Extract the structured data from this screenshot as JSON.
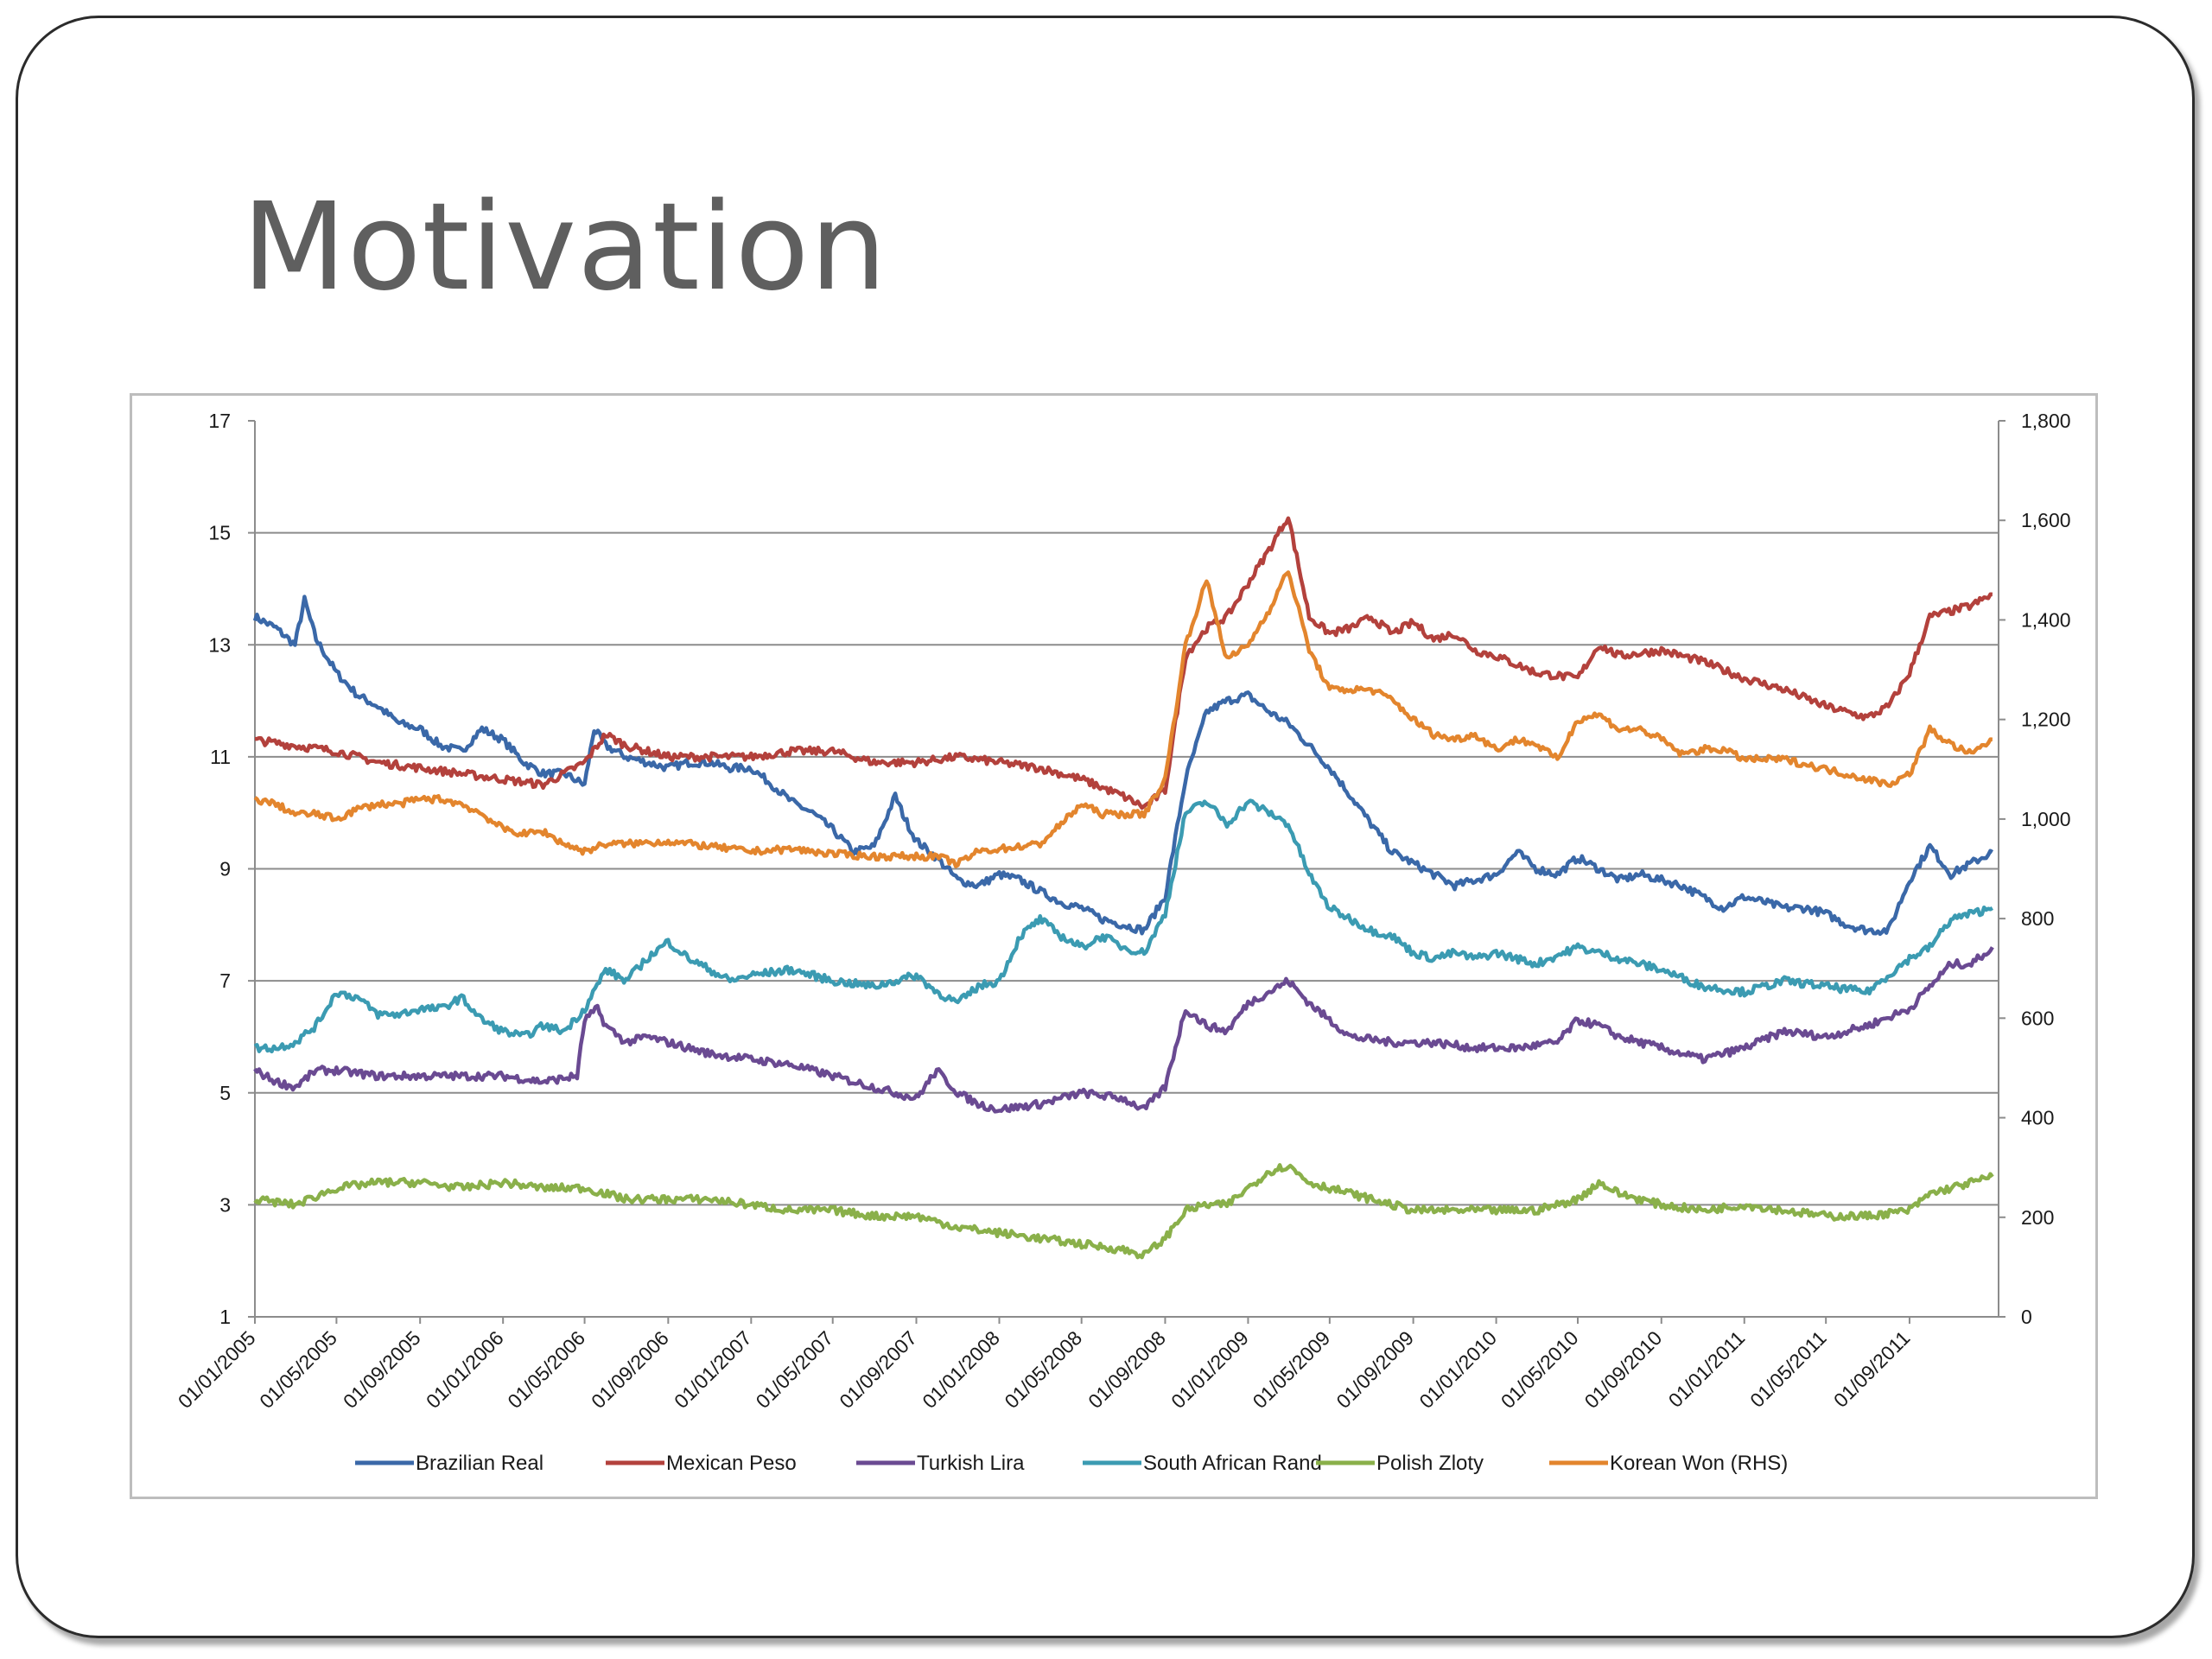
{
  "slide": {
    "title": "Motivation"
  },
  "chart_data": {
    "type": "line",
    "title": "",
    "xlabel": "",
    "ylabel": "",
    "y_left": {
      "ticks": [
        "17",
        "15",
        "13",
        "11",
        "9",
        "7",
        "5",
        "3",
        "1"
      ],
      "range": [
        1,
        17
      ]
    },
    "y_right": {
      "ticks": [
        "1,800",
        "1,600",
        "1,400",
        "1,200",
        "1,000",
        "800",
        "600",
        "400",
        "200",
        "0"
      ],
      "range": [
        0,
        1800
      ]
    },
    "x_ticks": [
      "01/01/2005",
      "01/05/2005",
      "01/09/2005",
      "01/01/2006",
      "01/05/2006",
      "01/09/2006",
      "01/01/2007",
      "01/05/2007",
      "01/09/2007",
      "01/01/2008",
      "01/05/2008",
      "01/09/2008",
      "01/01/2009",
      "01/05/2009",
      "01/09/2009",
      "01/01/2010",
      "01/05/2010",
      "01/09/2010",
      "01/01/2011",
      "01/05/2011",
      "01/09/2011"
    ],
    "x_range": [
      "2005-01-01",
      "2012-01-10"
    ],
    "grid": "horizontal",
    "legend_position": "bottom",
    "series": [
      {
        "name": "Brazilian Real",
        "color": "#3a68a8",
        "axis": "left",
        "x": [
          "2005-01-01",
          "2005-02-01",
          "2005-03-01",
          "2005-03-15",
          "2005-04-01",
          "2005-05-01",
          "2005-06-01",
          "2005-07-01",
          "2005-08-01",
          "2005-09-01",
          "2005-10-01",
          "2005-11-01",
          "2005-12-01",
          "2006-01-01",
          "2006-02-01",
          "2006-03-01",
          "2006-04-01",
          "2006-05-01",
          "2006-05-15",
          "2006-06-01",
          "2006-07-01",
          "2006-08-01",
          "2006-09-01",
          "2006-10-01",
          "2006-11-01",
          "2006-12-01",
          "2007-01-01",
          "2007-02-01",
          "2007-03-01",
          "2007-04-01",
          "2007-05-01",
          "2007-06-01",
          "2007-07-01",
          "2007-08-01",
          "2007-08-15",
          "2007-09-01",
          "2007-10-01",
          "2007-11-01",
          "2007-12-01",
          "2008-01-01",
          "2008-02-01",
          "2008-03-01",
          "2008-04-01",
          "2008-05-01",
          "2008-06-01",
          "2008-07-01",
          "2008-08-01",
          "2008-09-01",
          "2008-10-01",
          "2008-11-01",
          "2008-12-01",
          "2009-01-01",
          "2009-02-01",
          "2009-03-01",
          "2009-04-01",
          "2009-05-01",
          "2009-06-01",
          "2009-07-01",
          "2009-08-01",
          "2009-09-01",
          "2009-10-01",
          "2009-11-01",
          "2009-12-01",
          "2010-01-01",
          "2010-02-01",
          "2010-03-01",
          "2010-04-01",
          "2010-05-01",
          "2010-06-01",
          "2010-07-01",
          "2010-08-01",
          "2010-09-01",
          "2010-10-01",
          "2010-11-01",
          "2010-12-01",
          "2011-01-01",
          "2011-02-01",
          "2011-03-01",
          "2011-04-01",
          "2011-05-01",
          "2011-06-01",
          "2011-07-01",
          "2011-08-01",
          "2011-09-01",
          "2011-10-01",
          "2011-11-01",
          "2011-12-01",
          "2012-01-01"
        ],
        "y": [
          13.5,
          13.3,
          13.0,
          13.8,
          13.1,
          12.5,
          12.1,
          11.9,
          11.6,
          11.5,
          11.2,
          11.1,
          11.5,
          11.3,
          10.9,
          10.7,
          10.7,
          10.5,
          11.5,
          11.2,
          11.0,
          10.9,
          10.8,
          10.9,
          10.9,
          10.8,
          10.8,
          10.5,
          10.2,
          10.0,
          9.7,
          9.3,
          9.4,
          10.3,
          9.9,
          9.5,
          9.2,
          8.8,
          8.7,
          8.9,
          8.8,
          8.6,
          8.4,
          8.3,
          8.1,
          8.0,
          7.9,
          8.5,
          10.6,
          11.8,
          12.0,
          12.1,
          11.8,
          11.6,
          11.2,
          10.8,
          10.3,
          9.8,
          9.3,
          9.1,
          8.9,
          8.7,
          8.8,
          8.9,
          9.3,
          9.0,
          8.9,
          9.2,
          9.0,
          8.8,
          8.9,
          8.8,
          8.7,
          8.5,
          8.3,
          8.5,
          8.4,
          8.3,
          8.3,
          8.2,
          8.0,
          7.9,
          7.9,
          8.8,
          9.4,
          8.9,
          9.1,
          9.3
        ]
      },
      {
        "name": "Mexican Peso",
        "color": "#b3413c",
        "axis": "left",
        "x": [
          "2005-01-01",
          "2005-03-01",
          "2005-05-01",
          "2005-07-01",
          "2005-09-01",
          "2005-11-01",
          "2006-01-01",
          "2006-03-01",
          "2006-05-01",
          "2006-06-01",
          "2006-07-01",
          "2006-09-01",
          "2006-11-01",
          "2007-01-01",
          "2007-03-01",
          "2007-05-01",
          "2007-07-01",
          "2007-09-01",
          "2007-11-01",
          "2008-01-01",
          "2008-03-01",
          "2008-05-01",
          "2008-07-01",
          "2008-08-01",
          "2008-09-01",
          "2008-10-01",
          "2008-11-01",
          "2008-12-01",
          "2009-01-01",
          "2009-02-01",
          "2009-03-01",
          "2009-04-01",
          "2009-05-01",
          "2009-06-01",
          "2009-07-01",
          "2009-08-01",
          "2009-09-01",
          "2009-10-01",
          "2009-11-01",
          "2009-12-01",
          "2010-01-01",
          "2010-03-01",
          "2010-05-01",
          "2010-06-01",
          "2010-07-01",
          "2010-09-01",
          "2010-11-01",
          "2011-01-01",
          "2011-03-01",
          "2011-05-01",
          "2011-07-01",
          "2011-08-01",
          "2011-09-01",
          "2011-10-01",
          "2011-11-01",
          "2011-12-01",
          "2012-01-01"
        ],
        "y": [
          11.3,
          11.2,
          11.1,
          10.9,
          10.8,
          10.7,
          10.6,
          10.5,
          10.9,
          11.4,
          11.2,
          11.0,
          11.0,
          11.0,
          11.1,
          11.1,
          10.9,
          10.9,
          11.0,
          10.9,
          10.8,
          10.6,
          10.3,
          10.1,
          10.4,
          12.8,
          13.3,
          13.5,
          14.1,
          14.7,
          15.3,
          13.5,
          13.2,
          13.3,
          13.5,
          13.2,
          13.4,
          13.1,
          13.2,
          12.9,
          12.8,
          12.5,
          12.4,
          13.0,
          12.8,
          12.9,
          12.7,
          12.4,
          12.2,
          11.9,
          11.7,
          11.9,
          12.5,
          13.5,
          13.6,
          13.7,
          13.9
        ]
      },
      {
        "name": "Turkish Lira",
        "color": "#6a4a92",
        "axis": "left",
        "x": [
          "2005-01-01",
          "2005-02-01",
          "2005-03-01",
          "2005-04-01",
          "2005-05-01",
          "2005-07-01",
          "2005-09-01",
          "2005-11-01",
          "2006-01-01",
          "2006-03-01",
          "2006-04-20",
          "2006-05-01",
          "2006-05-20",
          "2006-06-01",
          "2006-07-01",
          "2006-08-01",
          "2006-09-01",
          "2006-11-01",
          "2007-01-01",
          "2007-03-01",
          "2007-05-01",
          "2007-07-01",
          "2007-09-01",
          "2007-10-01",
          "2007-11-01",
          "2007-12-01",
          "2008-01-01",
          "2008-03-01",
          "2008-05-01",
          "2008-07-01",
          "2008-08-01",
          "2008-09-01",
          "2008-10-01",
          "2008-11-01",
          "2008-12-01",
          "2009-01-01",
          "2009-02-01",
          "2009-03-01",
          "2009-04-01",
          "2009-05-01",
          "2009-06-01",
          "2009-08-01",
          "2009-10-01",
          "2009-12-01",
          "2010-02-01",
          "2010-04-01",
          "2010-05-01",
          "2010-06-01",
          "2010-07-01",
          "2010-09-01",
          "2010-11-01",
          "2011-01-01",
          "2011-03-01",
          "2011-05-01",
          "2011-07-01",
          "2011-09-01",
          "2011-10-01",
          "2011-11-01",
          "2011-12-01",
          "2012-01-01"
        ],
        "y": [
          5.4,
          5.2,
          5.1,
          5.4,
          5.4,
          5.3,
          5.3,
          5.3,
          5.3,
          5.2,
          5.3,
          6.3,
          6.5,
          6.2,
          5.9,
          6.0,
          5.9,
          5.7,
          5.6,
          5.5,
          5.3,
          5.1,
          4.9,
          5.4,
          5.0,
          4.8,
          4.7,
          4.8,
          5.0,
          4.9,
          4.7,
          5.1,
          6.5,
          6.2,
          6.1,
          6.6,
          6.8,
          7.0,
          6.6,
          6.3,
          6.0,
          5.9,
          5.9,
          5.8,
          5.8,
          5.9,
          6.3,
          6.2,
          6.0,
          5.8,
          5.6,
          5.8,
          6.1,
          6.0,
          6.2,
          6.5,
          6.9,
          7.3,
          7.3,
          7.6
        ]
      },
      {
        "name": "South African Rand",
        "color": "#3b9bb2",
        "axis": "left",
        "x": [
          "2005-01-01",
          "2005-02-01",
          "2005-03-01",
          "2005-04-01",
          "2005-05-01",
          "2005-06-01",
          "2005-07-01",
          "2005-08-01",
          "2005-09-01",
          "2005-10-01",
          "2005-11-01",
          "2005-12-01",
          "2006-01-01",
          "2006-02-01",
          "2006-03-01",
          "2006-04-01",
          "2006-05-01",
          "2006-06-01",
          "2006-07-01",
          "2006-08-01",
          "2006-09-01",
          "2006-10-01",
          "2006-11-01",
          "2006-12-01",
          "2007-01-01",
          "2007-03-01",
          "2007-05-01",
          "2007-07-01",
          "2007-09-01",
          "2007-10-01",
          "2007-11-01",
          "2007-12-01",
          "2008-01-01",
          "2008-02-01",
          "2008-03-01",
          "2008-04-01",
          "2008-05-01",
          "2008-06-01",
          "2008-07-01",
          "2008-08-01",
          "2008-09-01",
          "2008-10-01",
          "2008-11-01",
          "2008-12-01",
          "2009-01-01",
          "2009-02-01",
          "2009-03-01",
          "2009-04-01",
          "2009-05-01",
          "2009-06-01",
          "2009-07-01",
          "2009-08-01",
          "2009-09-01",
          "2009-10-01",
          "2009-11-01",
          "2009-12-01",
          "2010-01-01",
          "2010-03-01",
          "2010-05-01",
          "2010-06-01",
          "2010-07-01",
          "2010-09-01",
          "2010-11-01",
          "2011-01-01",
          "2011-03-01",
          "2011-05-01",
          "2011-07-01",
          "2011-09-01",
          "2011-10-01",
          "2011-11-01",
          "2011-12-01",
          "2012-01-01"
        ],
        "y": [
          5.8,
          5.8,
          5.9,
          6.2,
          6.8,
          6.7,
          6.4,
          6.4,
          6.5,
          6.5,
          6.7,
          6.3,
          6.1,
          6.0,
          6.2,
          6.1,
          6.5,
          7.2,
          7.0,
          7.4,
          7.7,
          7.4,
          7.2,
          7.0,
          7.1,
          7.2,
          7.0,
          6.9,
          7.1,
          6.8,
          6.6,
          6.9,
          7.0,
          7.8,
          8.1,
          7.8,
          7.6,
          7.8,
          7.6,
          7.5,
          8.2,
          10.0,
          10.2,
          9.8,
          10.2,
          10.0,
          9.8,
          8.9,
          8.3,
          8.1,
          7.9,
          7.8,
          7.5,
          7.4,
          7.5,
          7.4,
          7.5,
          7.3,
          7.6,
          7.5,
          7.4,
          7.2,
          6.9,
          6.8,
          7.0,
          6.9,
          6.8,
          7.4,
          7.6,
          8.1,
          8.2,
          8.3
        ]
      },
      {
        "name": "Polish Zloty",
        "color": "#8ab04a",
        "axis": "left",
        "x": [
          "2005-01-01",
          "2005-03-01",
          "2005-05-01",
          "2005-07-01",
          "2005-09-01",
          "2005-11-01",
          "2006-01-01",
          "2006-03-01",
          "2006-05-01",
          "2006-07-01",
          "2006-09-01",
          "2006-11-01",
          "2007-01-01",
          "2007-03-01",
          "2007-05-01",
          "2007-07-01",
          "2007-09-01",
          "2007-11-01",
          "2008-01-01",
          "2008-03-01",
          "2008-05-01",
          "2008-07-01",
          "2008-08-01",
          "2008-09-01",
          "2008-10-01",
          "2008-11-01",
          "2008-12-01",
          "2009-01-01",
          "2009-02-01",
          "2009-03-01",
          "2009-04-01",
          "2009-05-01",
          "2009-06-01",
          "2009-07-01",
          "2009-09-01",
          "2009-11-01",
          "2010-01-01",
          "2010-03-01",
          "2010-05-01",
          "2010-06-01",
          "2010-07-01",
          "2010-09-01",
          "2010-11-01",
          "2011-01-01",
          "2011-03-01",
          "2011-05-01",
          "2011-07-01",
          "2011-09-01",
          "2011-10-01",
          "2011-11-01",
          "2011-12-01",
          "2012-01-01"
        ],
        "y": [
          3.1,
          3.0,
          3.3,
          3.4,
          3.4,
          3.3,
          3.4,
          3.3,
          3.3,
          3.1,
          3.1,
          3.1,
          3.0,
          2.9,
          2.9,
          2.8,
          2.8,
          2.6,
          2.5,
          2.4,
          2.3,
          2.2,
          2.1,
          2.4,
          2.9,
          3.0,
          3.0,
          3.3,
          3.6,
          3.7,
          3.4,
          3.3,
          3.2,
          3.1,
          2.9,
          2.9,
          2.9,
          2.9,
          3.1,
          3.4,
          3.2,
          3.0,
          2.9,
          3.0,
          2.9,
          2.8,
          2.8,
          2.9,
          3.2,
          3.3,
          3.4,
          3.5
        ]
      },
      {
        "name": "Korean Won (RHS)",
        "color": "#e3852d",
        "axis": "right",
        "x": [
          "2005-01-01",
          "2005-02-01",
          "2005-03-01",
          "2005-04-01",
          "2005-05-01",
          "2005-06-01",
          "2005-07-01",
          "2005-08-01",
          "2005-09-01",
          "2005-10-01",
          "2005-11-01",
          "2005-12-01",
          "2006-01-01",
          "2006-02-01",
          "2006-03-01",
          "2006-04-01",
          "2006-05-01",
          "2006-06-01",
          "2006-07-01",
          "2006-09-01",
          "2006-11-01",
          "2007-01-01",
          "2007-03-01",
          "2007-05-01",
          "2007-07-01",
          "2007-09-01",
          "2007-10-01",
          "2007-11-01",
          "2007-12-01",
          "2008-01-01",
          "2008-02-01",
          "2008-03-01",
          "2008-04-01",
          "2008-05-01",
          "2008-06-01",
          "2008-07-01",
          "2008-08-01",
          "2008-09-01",
          "2008-10-01",
          "2008-11-01",
          "2008-12-01",
          "2009-01-01",
          "2009-02-01",
          "2009-03-01",
          "2009-04-01",
          "2009-05-01",
          "2009-06-01",
          "2009-07-01",
          "2009-08-01",
          "2009-09-01",
          "2009-10-01",
          "2009-11-01",
          "2009-12-01",
          "2010-01-01",
          "2010-02-01",
          "2010-03-01",
          "2010-04-01",
          "2010-05-01",
          "2010-06-01",
          "2010-07-01",
          "2010-08-01",
          "2010-09-01",
          "2010-10-01",
          "2010-11-01",
          "2010-12-01",
          "2011-01-01",
          "2011-03-01",
          "2011-05-01",
          "2011-07-01",
          "2011-08-01",
          "2011-09-01",
          "2011-10-01",
          "2011-11-01",
          "2011-12-01",
          "2012-01-01"
        ],
        "y": [
          1040,
          1030,
          1010,
          1010,
          1000,
          1020,
          1030,
          1030,
          1040,
          1040,
          1030,
          1010,
          980,
          970,
          975,
          950,
          935,
          950,
          950,
          955,
          945,
          935,
          940,
          930,
          925,
          925,
          925,
          910,
          935,
          940,
          945,
          950,
          990,
          1030,
          1010,
          1010,
          1010,
          1080,
          1350,
          1480,
          1320,
          1350,
          1420,
          1500,
          1340,
          1260,
          1260,
          1260,
          1240,
          1200,
          1170,
          1160,
          1170,
          1140,
          1160,
          1150,
          1120,
          1200,
          1210,
          1180,
          1180,
          1160,
          1130,
          1140,
          1140,
          1120,
          1120,
          1100,
          1080,
          1070,
          1090,
          1180,
          1150,
          1130,
          1160
        ]
      }
    ]
  }
}
